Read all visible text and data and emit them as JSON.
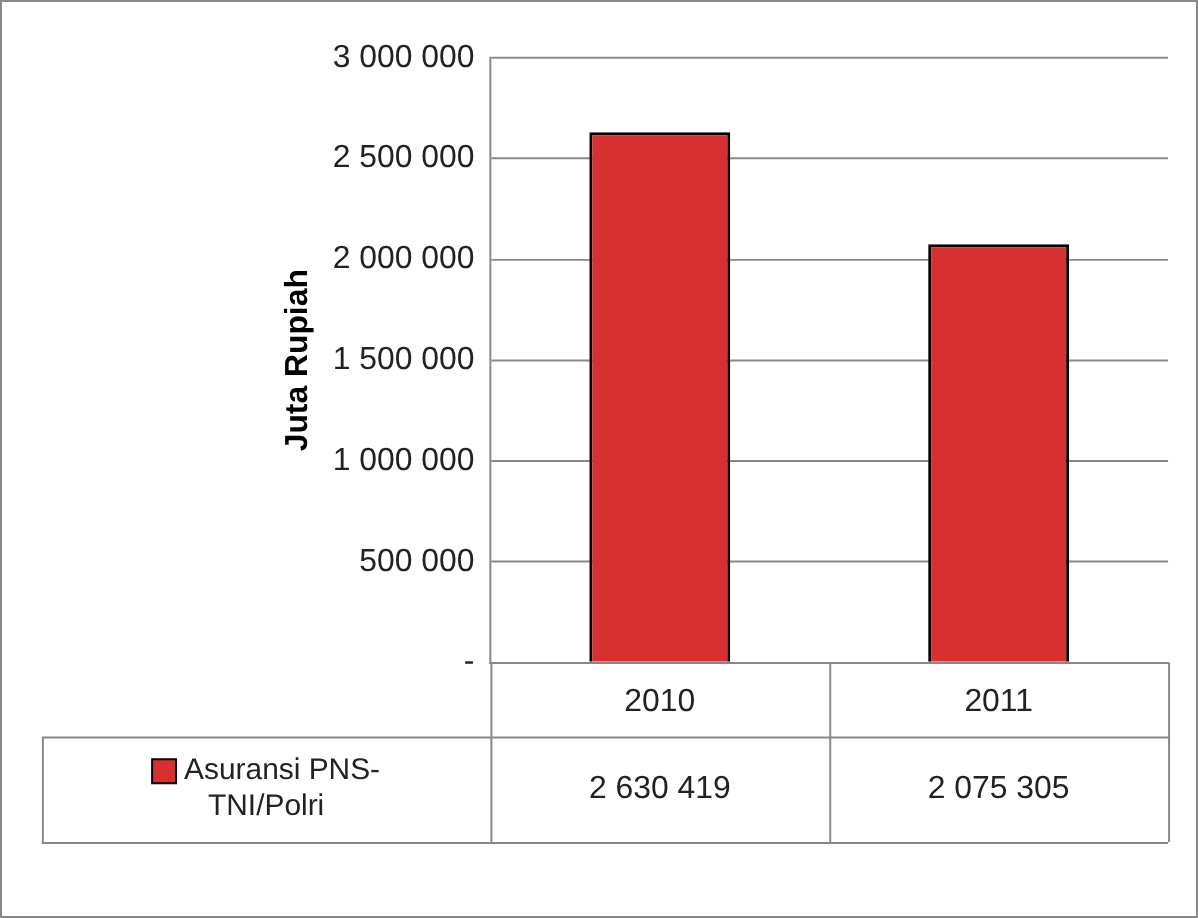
{
  "chart_data": {
    "type": "bar",
    "ylabel": "Juta Rupiah",
    "categories": [
      "2010",
      "2011"
    ],
    "series": [
      {
        "name": "Asuransi PNS-TNI/Polri",
        "color": "#d83030",
        "values": [
          2630419,
          2075305
        ]
      }
    ],
    "ylim": [
      0,
      3000000
    ],
    "yticks": [
      {
        "value": 0,
        "label": "-"
      },
      {
        "value": 500000,
        "label": "500 000"
      },
      {
        "value": 1000000,
        "label": "1 000 000"
      },
      {
        "value": 1500000,
        "label": "1 500 000"
      },
      {
        "value": 2000000,
        "label": "2 000 000"
      },
      {
        "value": 2500000,
        "label": "2 500 000"
      },
      {
        "value": 3000000,
        "label": "3 000 000"
      }
    ],
    "value_labels": [
      "2 630 419",
      "2 075 305"
    ],
    "grid": "y",
    "legend": "bottom"
  }
}
